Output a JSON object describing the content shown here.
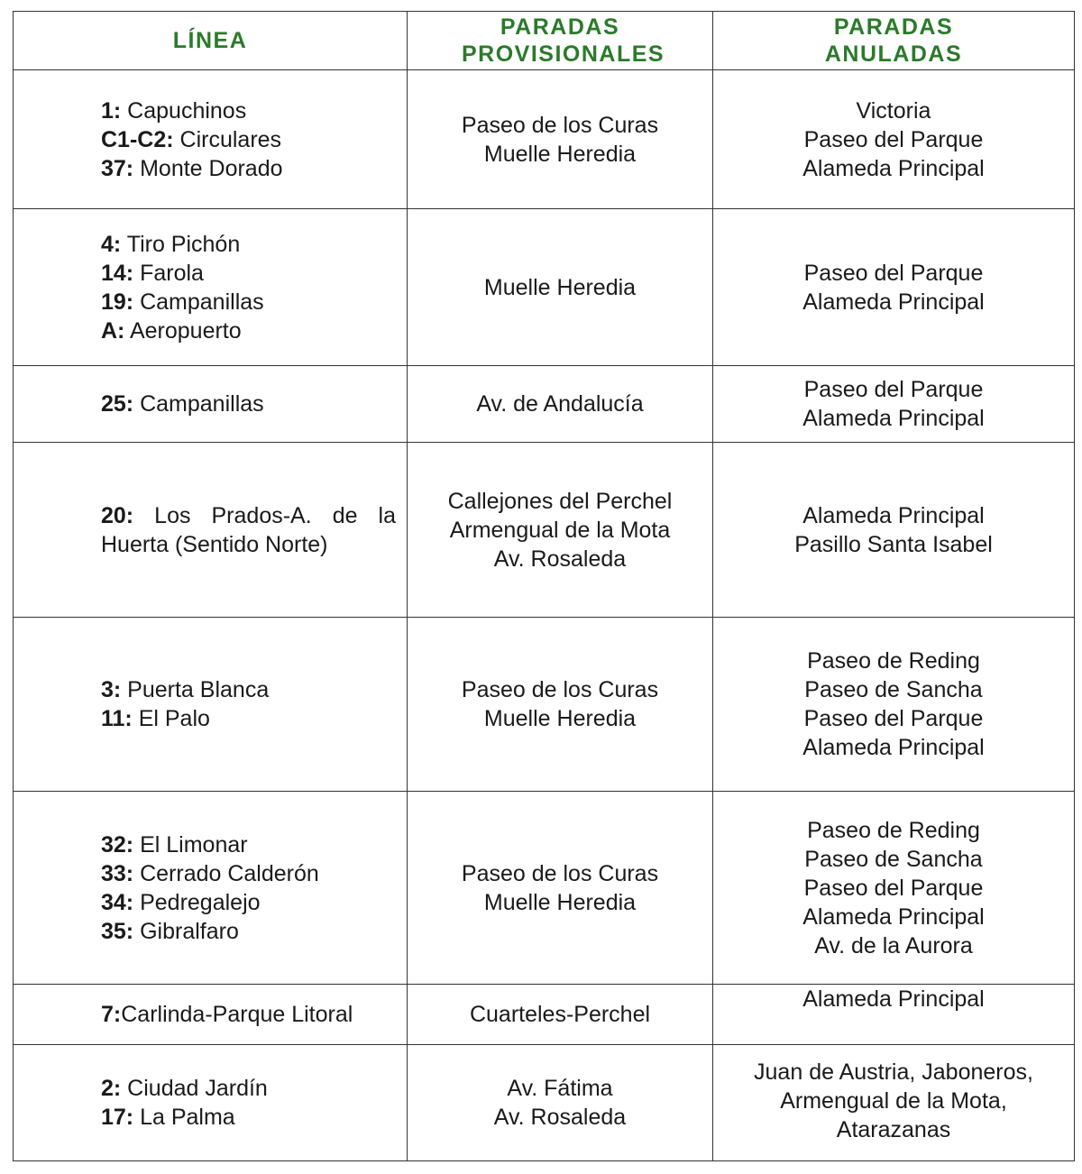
{
  "header": {
    "linea": "LÍNEA",
    "provisionales": "PARADAS PROVISIONALES",
    "anuladas": "PARADAS ANULADAS"
  },
  "colors": {
    "header_text": "#2b7a2b",
    "border": "#333333"
  },
  "rows": [
    {
      "lines": [
        {
          "num": "1:",
          "name": " Capuchinos"
        },
        {
          "num": "C1-C2:",
          "name": " Circulares"
        },
        {
          "num": "37:",
          "name": " Monte Dorado"
        }
      ],
      "provisionales": [
        "Paseo de los Curas",
        "Muelle Heredia"
      ],
      "anuladas": [
        "Victoria",
        "Paseo del Parque",
        "Alameda Principal"
      ]
    },
    {
      "lines": [
        {
          "num": "4:",
          "name": " Tiro Pichón"
        },
        {
          "num": "14:",
          "name": " Farola"
        },
        {
          "num": "19:",
          "name": " Campanillas"
        },
        {
          "num": "A:",
          "name": " Aeropuerto"
        }
      ],
      "provisionales": [
        "Muelle Heredia"
      ],
      "anuladas": [
        "Paseo del Parque",
        "Alameda Principal"
      ]
    },
    {
      "lines": [
        {
          "num": "25:",
          "name": " Campanillas"
        }
      ],
      "provisionales": [
        "Av. de Andalucía"
      ],
      "anuladas": [
        "Paseo del Parque",
        "Alameda Principal"
      ]
    },
    {
      "lines": [
        {
          "num": "20:",
          "name": " Los Prados-A. de la Huerta (Sentido Norte)"
        }
      ],
      "provisionales": [
        "Callejones del Perchel",
        "Armengual de la Mota",
        "Av. Rosaleda"
      ],
      "anuladas": [
        "Alameda Principal",
        "Pasillo Santa Isabel"
      ]
    },
    {
      "lines": [
        {
          "num": "3:",
          "name": " Puerta Blanca"
        },
        {
          "num": "11:",
          "name": " El Palo"
        }
      ],
      "provisionales": [
        "Paseo de los Curas",
        "Muelle Heredia"
      ],
      "anuladas": [
        "Paseo de Reding",
        "Paseo de Sancha",
        "Paseo del Parque",
        "Alameda Principal"
      ]
    },
    {
      "lines": [
        {
          "num": "32:",
          "name": " El Limonar"
        },
        {
          "num": "33:",
          "name": " Cerrado Calderón"
        },
        {
          "num": "34:",
          "name": " Pedregalejo"
        },
        {
          "num": "35:",
          "name": " Gibralfaro"
        }
      ],
      "provisionales": [
        "Paseo de los Curas",
        "Muelle Heredia"
      ],
      "anuladas": [
        "Paseo de Reding",
        "Paseo de Sancha",
        "Paseo del Parque",
        "Alameda Principal",
        "Av. de la Aurora"
      ]
    },
    {
      "lines": [
        {
          "num": "7:",
          "name": "Carlinda-Parque Litoral"
        }
      ],
      "provisionales": [
        "Cuarteles-Perchel"
      ],
      "anuladas": [
        "Alameda Principal"
      ]
    },
    {
      "lines": [
        {
          "num": "2:",
          "name": " Ciudad Jardín"
        },
        {
          "num": "17:",
          "name": " La Palma"
        }
      ],
      "provisionales": [
        "Av. Fátima",
        "Av. Rosaleda"
      ],
      "anuladas": [
        "Juan de Austria, Jaboneros,",
        "Armengual de la Mota,",
        "Atarazanas"
      ]
    }
  ]
}
